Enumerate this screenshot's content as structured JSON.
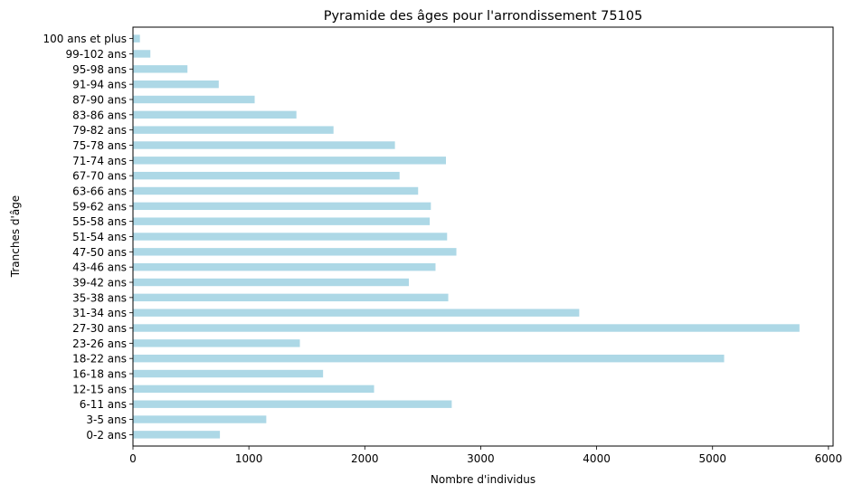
{
  "chart_data": {
    "type": "bar",
    "orientation": "horizontal",
    "title": "Pyramide des âges pour l'arrondissement 75105",
    "xlabel": "Nombre d'individus",
    "ylabel": "Tranches d'âge",
    "xlim": [
      0,
      6040
    ],
    "xticks": [
      0,
      1000,
      2000,
      3000,
      4000,
      5000,
      6000
    ],
    "grid": false,
    "bar_color": "#add8e6",
    "categories": [
      "0-2 ans",
      "3-5 ans",
      "6-11 ans",
      "12-15 ans",
      "16-18 ans",
      "18-22 ans",
      "23-26 ans",
      "27-30 ans",
      "31-34 ans",
      "35-38 ans",
      "39-42 ans",
      "43-46 ans",
      "47-50 ans",
      "51-54 ans",
      "55-58 ans",
      "59-62 ans",
      "63-66 ans",
      "67-70 ans",
      "71-74 ans",
      "75-78 ans",
      "79-82 ans",
      "83-86 ans",
      "87-90 ans",
      "91-94 ans",
      "95-98 ans",
      "99-102 ans",
      "100 ans et plus"
    ],
    "values": [
      750,
      1150,
      2750,
      2080,
      1640,
      5100,
      1440,
      5750,
      3850,
      2720,
      2380,
      2610,
      2790,
      2710,
      2560,
      2570,
      2460,
      2300,
      2700,
      2260,
      1730,
      1410,
      1050,
      740,
      470,
      150,
      60
    ]
  }
}
